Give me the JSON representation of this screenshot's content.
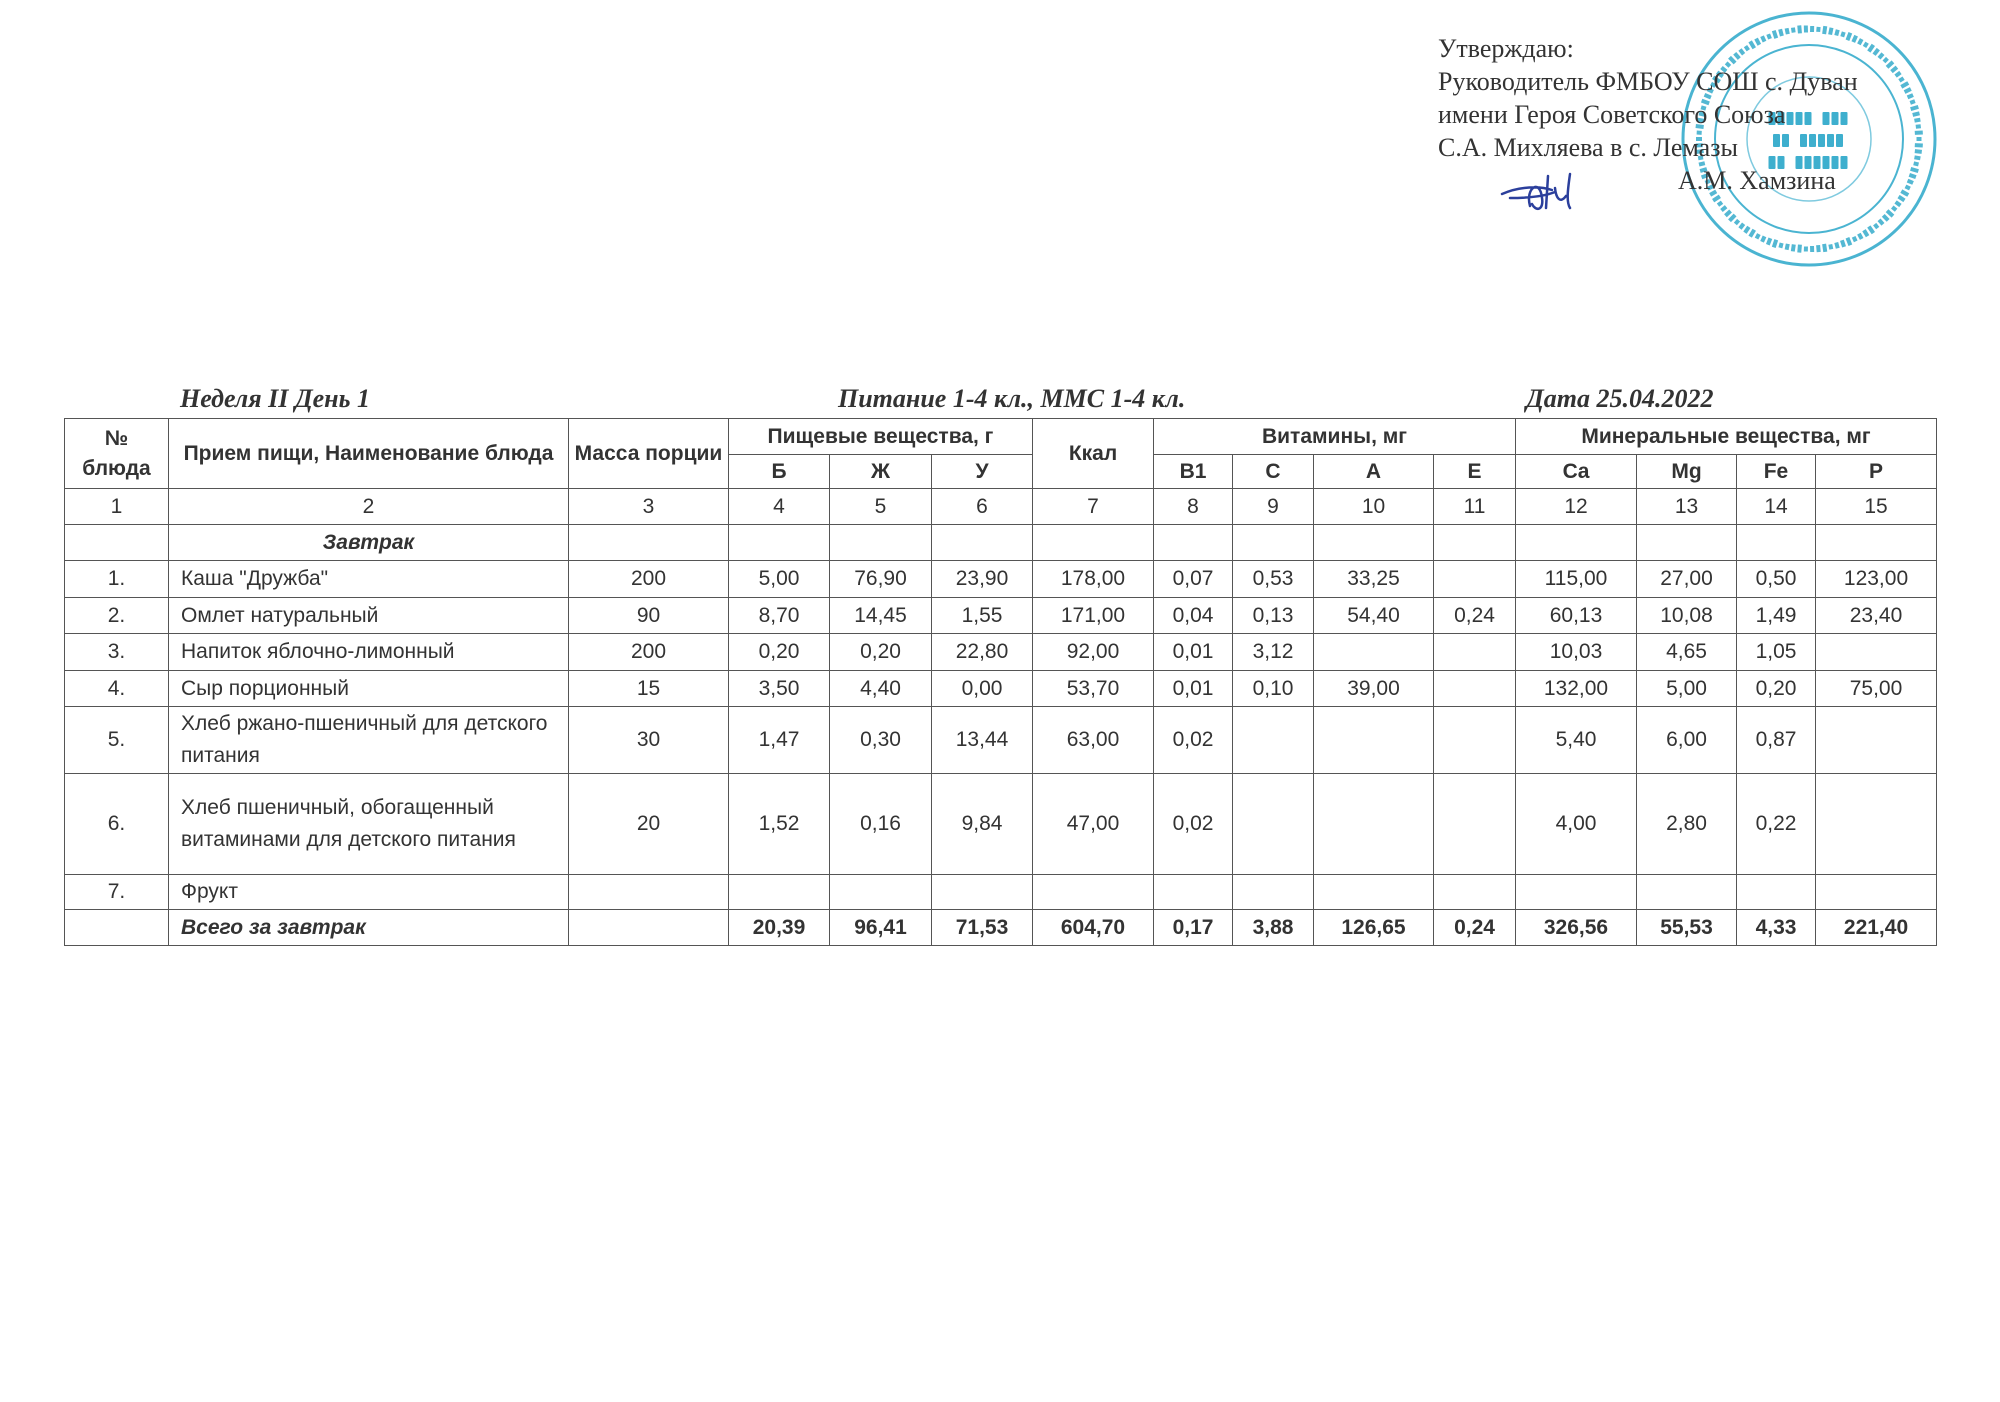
{
  "approval": {
    "lines": [
      "Утверждаю:",
      "Руководитель ФМБОУ СОШ с. Дуван",
      "имени Героя Советского Союза",
      "С.А. Михляева в с. Лемазы",
      "А.М. Хамзина"
    ],
    "stamp_text": [
      "ФМБОУ СОШ",
      "с. ДУВАН",
      "с. ЛЕМАЗЫ"
    ],
    "stamp_ring": "БАШКОРТОСТАН РЕСПУБЛИКАҺЫ ДЫУАН РАЙОНЫ МУНИЦИПАЛЬ БЮДЖЕТ ДӨЙӨМ БЕЛЕМ БИРЕҮ УЧРЕЖДЕНИЕҺЫ ФИЛИАЛЫ • ФИЛИАЛ МУНИЦИПАЛЬНОГО БЮДЖЕТНОГО ОБЩЕОБРАЗОВАТЕЛЬНОГО УЧРЕЖДЕНИЯ СРЕДНЕЙ ШКОЛЫ с. ДУВАН • с. ЛЕМАЗЫ",
    "stamp_color": "#2aa7c9",
    "signature_color": "#2b3f9c"
  },
  "header": {
    "week_day": "Неделя II День 1",
    "nutrition": "Питание  1-4 кл., ММС 1-4 кл.",
    "date": "Дата  25.04.2022"
  },
  "table": {
    "head": {
      "num": "№ блюда",
      "name": "Прием пищи, Наименование блюда",
      "mass": "Масса порции",
      "nutrients": "Пищевые вещества, г",
      "kcal": "Ккал",
      "vitamins": "Витамины, мг",
      "minerals": "Минеральные вещества, мг",
      "sub": [
        "Б",
        "Ж",
        "У",
        "B1",
        "C",
        "A",
        "E",
        "Ca",
        "Mg",
        "Fe",
        "P"
      ],
      "index": [
        "1",
        "2",
        "3",
        "4",
        "5",
        "6",
        "7",
        "8",
        "9",
        "10",
        "11",
        "12",
        "13",
        "14",
        "15"
      ]
    },
    "section": "Завтрак",
    "rows": [
      [
        "1.",
        "Каша \"Дружба\"",
        "200",
        "5,00",
        "76,90",
        "23,90",
        "178,00",
        "0,07",
        "0,53",
        "33,25",
        "",
        "115,00",
        "27,00",
        "0,50",
        "123,00"
      ],
      [
        "2.",
        "Омлет натуральный",
        "90",
        "8,70",
        "14,45",
        "1,55",
        "171,00",
        "0,04",
        "0,13",
        "54,40",
        "0,24",
        "60,13",
        "10,08",
        "1,49",
        "23,40"
      ],
      [
        "3.",
        "Напиток яблочно-лимонный",
        "200",
        "0,20",
        "0,20",
        "22,80",
        "92,00",
        "0,01",
        "3,12",
        "",
        "",
        "10,03",
        "4,65",
        "1,05",
        ""
      ],
      [
        "4.",
        "Сыр порционный",
        "15",
        "3,50",
        "4,40",
        "0,00",
        "53,70",
        "0,01",
        "0,10",
        "39,00",
        "",
        "132,00",
        "5,00",
        "0,20",
        "75,00"
      ],
      [
        "5.",
        "Хлеб ржано-пшеничный для детского питания",
        "30",
        "1,47",
        "0,30",
        "13,44",
        "63,00",
        "0,02",
        "",
        "",
        "",
        "5,40",
        "6,00",
        "0,87",
        ""
      ],
      [
        "6.",
        "Хлеб пшеничный, обогащенный витаминами для детского питания",
        "20",
        "1,52",
        "0,16",
        "9,84",
        "47,00",
        "0,02",
        "",
        "",
        "",
        "4,00",
        "2,80",
        "0,22",
        ""
      ],
      [
        "7.",
        "Фрукт",
        "",
        "",
        "",
        "",
        "",
        "",
        "",
        "",
        "",
        "",
        "",
        "",
        ""
      ]
    ],
    "total": [
      "",
      "Всего за завтрак",
      "",
      "20,39",
      "96,41",
      "71,53",
      "604,70",
      "0,17",
      "3,88",
      "126,65",
      "0,24",
      "326,56",
      "55,53",
      "4,33",
      "221,40"
    ]
  }
}
